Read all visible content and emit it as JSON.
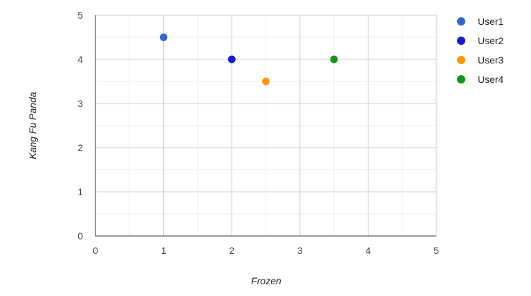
{
  "chart_data": {
    "type": "scatter",
    "title": "",
    "xlabel": "Frozen",
    "ylabel": "Kang Fu Panda",
    "xlim": [
      0,
      5
    ],
    "ylim": [
      0,
      5
    ],
    "x_ticks": [
      "0",
      "1",
      "2",
      "3",
      "4",
      "5"
    ],
    "y_ticks": [
      "0",
      "1",
      "2",
      "3",
      "4",
      "5"
    ],
    "grid": true,
    "minor_grid": true,
    "legend_position": "right",
    "series": [
      {
        "name": "User1",
        "color": "#3366cc",
        "points": [
          {
            "x": 1,
            "y": 4.5
          }
        ]
      },
      {
        "name": "User2",
        "color": "#1a1ad6",
        "points": [
          {
            "x": 2,
            "y": 4
          }
        ]
      },
      {
        "name": "User3",
        "color": "#ff9900",
        "points": [
          {
            "x": 2.5,
            "y": 3.5
          }
        ]
      },
      {
        "name": "User4",
        "color": "#109618",
        "points": [
          {
            "x": 3.5,
            "y": 4
          }
        ]
      }
    ]
  }
}
